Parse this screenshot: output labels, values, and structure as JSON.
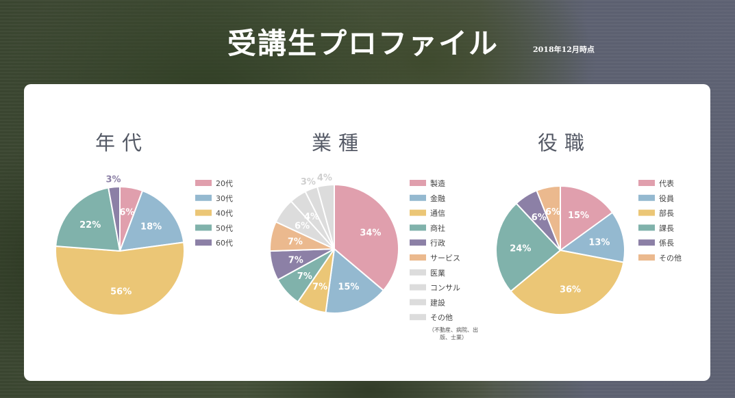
{
  "header": {
    "title": "受講生プロファイル",
    "as_of": "2018年12月時点"
  },
  "chart_data": [
    {
      "type": "pie",
      "title": "年代",
      "categories": [
        "20代",
        "30代",
        "40代",
        "50代",
        "60代"
      ],
      "values": [
        6,
        18,
        56,
        22,
        3
      ],
      "unit": "%",
      "colors": [
        "#e09fad",
        "#94b9d0",
        "#ebc676",
        "#80b2ab",
        "#8c80a6"
      ],
      "legend_position": "right"
    },
    {
      "type": "pie",
      "title": "業種",
      "categories": [
        "製造",
        "金融",
        "通信",
        "商社",
        "行政",
        "サービス",
        "医業",
        "コンサル",
        "建設",
        "その他"
      ],
      "values": [
        34,
        15,
        7,
        7,
        7,
        7,
        6,
        4,
        3,
        4
      ],
      "unit": "%",
      "colors": [
        "#e09fad",
        "#94b9d0",
        "#ebc676",
        "#80b2ab",
        "#8c80a6",
        "#ebb98e",
        "#dcdcdc",
        "#dcdcdc",
        "#dcdcdc",
        "#dcdcdc"
      ],
      "legend_position": "right",
      "note": "（不動産、病院、出版、士業）"
    },
    {
      "type": "pie",
      "title": "役職",
      "categories": [
        "代表",
        "役員",
        "部長",
        "課長",
        "係長",
        "その他"
      ],
      "values": [
        15,
        13,
        36,
        24,
        6,
        6
      ],
      "unit": "%",
      "colors": [
        "#e09fad",
        "#94b9d0",
        "#ebc676",
        "#80b2ab",
        "#8c80a6",
        "#ebb98e"
      ],
      "legend_position": "right"
    }
  ]
}
